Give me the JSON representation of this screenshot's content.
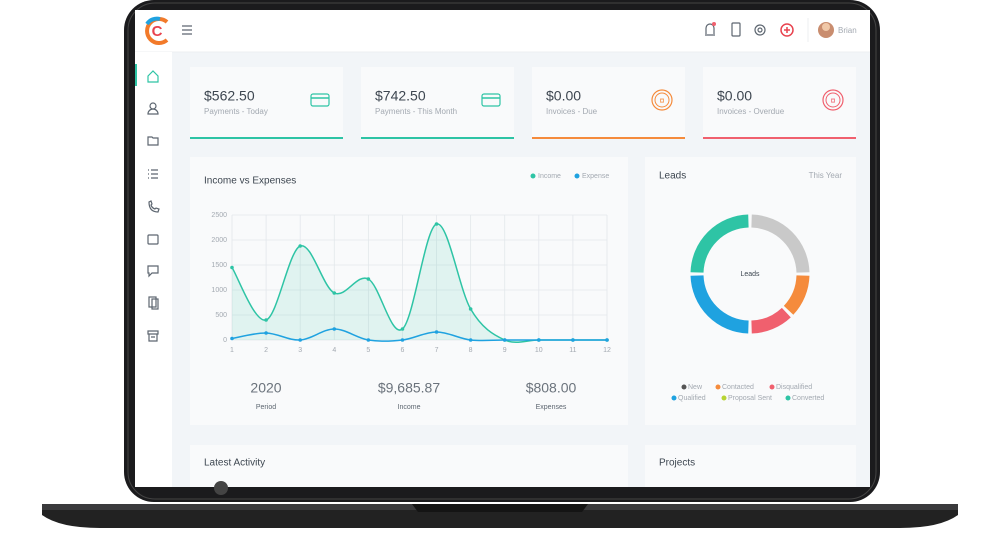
{
  "header": {
    "user": "Brian"
  },
  "cards": [
    {
      "value": "$562.50",
      "label": "Payments - Today"
    },
    {
      "value": "$742.50",
      "label": "Payments - This Month"
    },
    {
      "value": "$0.00",
      "label": "Invoices - Due"
    },
    {
      "value": "$0.00",
      "label": "Invoices - Overdue"
    }
  ],
  "chart_data": [
    {
      "type": "line",
      "title": "Income vs Expenses",
      "x": [
        1,
        2,
        3,
        4,
        5,
        6,
        7,
        8,
        9,
        10,
        11,
        12
      ],
      "xlim": [
        1,
        12
      ],
      "xticks": [
        1,
        2,
        3,
        4,
        5,
        6,
        7,
        8,
        9,
        10,
        11,
        12
      ],
      "ylim": [
        0,
        2500
      ],
      "yticks": [
        0,
        500,
        1000,
        1500,
        2000,
        2500
      ],
      "grid": true,
      "legend": "top-right",
      "series": [
        {
          "name": "Income",
          "color": "#2ec4a5",
          "values": [
            1450,
            400,
            1880,
            940,
            1220,
            220,
            2320,
            620,
            0,
            0,
            0,
            0
          ]
        },
        {
          "name": "Expense",
          "color": "#1fa2e0",
          "values": [
            30,
            140,
            0,
            220,
            0,
            0,
            160,
            0,
            0,
            0,
            0,
            0
          ]
        }
      ]
    },
    {
      "type": "donut",
      "title": "Leads",
      "subtitle": "This Year",
      "center_label": "Leads",
      "categories": [
        "New",
        "Contacted",
        "Disqualified",
        "Qualified",
        "Proposal Sent",
        "Converted"
      ],
      "values": [
        25,
        12.5,
        12.5,
        25,
        0,
        25
      ],
      "colors": [
        "#c9c9c9",
        "#f58b3c",
        "#f0606e",
        "#1fa2e0",
        "#b7d433",
        "#2ec4a5"
      ]
    }
  ],
  "summary": [
    {
      "value": "2020",
      "label": "Period"
    },
    {
      "value": "$9,685.87",
      "label": "Income"
    },
    {
      "value": "$808.00",
      "label": "Expenses"
    }
  ],
  "panels": {
    "activity": "Latest Activity",
    "projects": "Projects"
  }
}
